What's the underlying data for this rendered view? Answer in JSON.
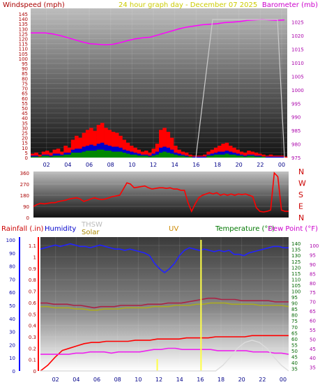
{
  "header": {
    "wind_label": "Windspeed (mph)",
    "title": "24 hour graph day - December 07 2025",
    "baro_label": "Barometer (mb)"
  },
  "chart_data": [
    {
      "name": "wind-baro-panel",
      "type": "bar",
      "x_ticks": [
        "02",
        "04",
        "06",
        "08",
        "10",
        "12",
        "14",
        "16",
        "18",
        "20",
        "22",
        "00"
      ],
      "left_axis": {
        "label": "Windspeed (mph)",
        "ticks": [
          0,
          5,
          10,
          15,
          20,
          25,
          30,
          35,
          40,
          45,
          50,
          55,
          60,
          65,
          70,
          75,
          80,
          85,
          90,
          95,
          100,
          105,
          110,
          115,
          120,
          125,
          130,
          135,
          140,
          145
        ],
        "ylim": [
          0,
          145
        ]
      },
      "right_axis": {
        "label": "Barometer (mb)",
        "ticks": [
          975,
          980,
          985,
          990,
          995,
          1000,
          1005,
          1010,
          1015,
          1020,
          1025
        ],
        "ylim": [
          975,
          1028
        ]
      },
      "series": [
        {
          "name": "gust",
          "color": "#ff0000",
          "values": [
            4,
            5,
            3,
            6,
            7,
            5,
            8,
            9,
            6,
            12,
            10,
            18,
            22,
            20,
            25,
            28,
            30,
            27,
            33,
            35,
            30,
            28,
            26,
            25,
            22,
            18,
            15,
            12,
            10,
            8,
            6,
            7,
            5,
            9,
            14,
            28,
            30,
            26,
            20,
            12,
            8,
            6,
            5,
            3,
            2,
            2,
            2,
            3,
            6,
            8,
            10,
            12,
            14,
            15,
            12,
            10,
            8,
            6,
            5,
            7,
            6,
            5,
            4,
            3,
            2,
            3,
            2,
            2,
            2,
            1
          ]
        },
        {
          "name": "average",
          "color": "#0000cc",
          "values": [
            2,
            2,
            1,
            3,
            3,
            2,
            4,
            4,
            3,
            5,
            5,
            8,
            9,
            9,
            11,
            12,
            13,
            12,
            14,
            15,
            13,
            12,
            11,
            11,
            10,
            8,
            7,
            6,
            5,
            4,
            3,
            3,
            2,
            4,
            6,
            10,
            11,
            10,
            8,
            5,
            4,
            3,
            2,
            1,
            1,
            1,
            1,
            1,
            3,
            4,
            5,
            6,
            6,
            7,
            6,
            5,
            4,
            3,
            2,
            3,
            3,
            2,
            2,
            1,
            1,
            1,
            1,
            1,
            1,
            0
          ]
        },
        {
          "name": "low",
          "color": "#008800",
          "values": [
            1,
            1,
            1,
            2,
            2,
            1,
            2,
            2,
            2,
            3,
            3,
            5,
            5,
            5,
            6,
            7,
            7,
            7,
            8,
            8,
            7,
            7,
            6,
            6,
            6,
            5,
            4,
            3,
            3,
            2,
            2,
            2,
            1,
            2,
            3,
            5,
            6,
            5,
            4,
            3,
            2,
            2,
            1,
            1,
            0,
            0,
            0,
            0,
            2,
            2,
            3,
            3,
            3,
            4,
            3,
            3,
            2,
            2,
            1,
            2,
            2,
            1,
            1,
            1,
            0,
            0,
            0,
            0,
            0,
            0
          ]
        },
        {
          "name": "barometer",
          "color": "#ff00ff",
          "values": [
            1021,
            1021,
            1021,
            1020.6,
            1020,
            1019.2,
            1018.4,
            1017.6,
            1017,
            1016.8,
            1016.6,
            1016.8,
            1017.4,
            1018.2,
            1018.8,
            1019.2,
            1019.4,
            1020.2,
            1021,
            1021.8,
            1022.6,
            1023.2,
            1023.6,
            1024,
            1024.2,
            1024.4,
            1024.8,
            1025,
            1025.2,
            1025.6,
            1025.8,
            1026,
            1025.8,
            1025.6,
            1025.8
          ]
        }
      ]
    },
    {
      "name": "direction-panel",
      "type": "line",
      "left_axis": {
        "ticks": [
          0,
          90,
          180,
          270,
          360
        ],
        "ylim": [
          0,
          360
        ]
      },
      "right_labels": [
        "N",
        "W",
        "S",
        "E",
        "N"
      ],
      "series": [
        {
          "name": "wind direction",
          "color": "#ff0000",
          "values": [
            90,
            105,
            115,
            110,
            115,
            120,
            120,
            130,
            135,
            140,
            150,
            155,
            160,
            150,
            130,
            140,
            150,
            160,
            150,
            145,
            150,
            160,
            170,
            175,
            180,
            230,
            280,
            270,
            240,
            245,
            250,
            255,
            240,
            230,
            235,
            240,
            240,
            235,
            240,
            230,
            230,
            220,
            220,
            120,
            50,
            110,
            160,
            180,
            190,
            200,
            190,
            200,
            180,
            190,
            180,
            190,
            180,
            190,
            185,
            190,
            180,
            170,
            80,
            50,
            45,
            50,
            60,
            360,
            330,
            60,
            50,
            50
          ]
        }
      ]
    },
    {
      "name": "weather-panel",
      "type": "line",
      "labels": {
        "rain": "Rainfall (.in)",
        "humidity": "Humidity",
        "thsw": "THSW",
        "solar": "Solar",
        "uv": "UV",
        "temp": "Temperature (°F)",
        "dew": "Dew Point (°F)"
      },
      "x_ticks": [
        "02",
        "04",
        "06",
        "08",
        "10",
        "12",
        "14",
        "16",
        "18",
        "20",
        "22",
        "00"
      ],
      "humidity_axis": {
        "ticks": [
          0,
          10,
          20,
          30,
          40,
          50,
          60,
          70,
          80,
          90,
          100
        ],
        "ylim": [
          0,
          100
        ]
      },
      "rain_axis": {
        "ticks": [
          0,
          0.1,
          0.2,
          0.3,
          0.4,
          0.5,
          0.6,
          0.7,
          0.8,
          0.9,
          1,
          1.1
        ],
        "ylim": [
          0,
          1.15
        ]
      },
      "temp_axis": {
        "ticks": [
          35,
          40,
          45,
          50,
          55,
          60,
          65,
          70,
          75,
          80,
          85,
          90,
          95,
          100,
          105,
          110,
          115,
          120,
          125,
          130,
          135,
          140
        ],
        "ylim": [
          33,
          143
        ]
      },
      "dew_axis": {
        "ticks": [
          35,
          40,
          45,
          50,
          55,
          60,
          65,
          70,
          75,
          80,
          85,
          90,
          95,
          100
        ],
        "ylim": [
          33,
          103
        ]
      },
      "series": [
        {
          "name": "humidity",
          "color": "#2222ff",
          "values": [
            93,
            94,
            95,
            96,
            95,
            96,
            97,
            96,
            95,
            95,
            94,
            95,
            96,
            95,
            94,
            93,
            93,
            92,
            93,
            92,
            91,
            90,
            88,
            82,
            78,
            75,
            78,
            82,
            88,
            92,
            94,
            93,
            92,
            93,
            92,
            91,
            92,
            91,
            92,
            89,
            89,
            88,
            90,
            91,
            92,
            93,
            94,
            95,
            95,
            94,
            94
          ]
        },
        {
          "name": "rainfall",
          "color": "#ff0000",
          "values": [
            0,
            0.05,
            0.12,
            0.18,
            0.2,
            0.22,
            0.24,
            0.25,
            0.25,
            0.26,
            0.26,
            0.26,
            0.26,
            0.27,
            0.27,
            0.27,
            0.28,
            0.28,
            0.28,
            0.28,
            0.29,
            0.29,
            0.29,
            0.29,
            0.3,
            0.3,
            0.3,
            0.3,
            0.3,
            0.31,
            0.31,
            0.31,
            0.31,
            0.31,
            0.31
          ]
        },
        {
          "name": "temperature",
          "color": "#aa2244",
          "values": [
            90,
            90,
            89,
            89,
            89,
            88,
            88,
            87,
            86,
            87,
            87,
            87,
            88,
            88,
            88,
            88,
            89,
            89,
            89,
            90,
            90,
            90,
            91,
            92,
            93,
            94,
            94,
            93,
            93,
            93,
            92,
            92,
            92,
            92,
            92,
            91,
            91,
            91
          ]
        },
        {
          "name": "dew point",
          "color": "#ee22ee",
          "values": [
            47,
            47,
            47,
            47,
            47,
            48,
            48,
            49,
            49,
            49,
            48,
            49,
            49,
            49,
            49,
            50,
            51,
            51,
            52,
            52,
            51,
            51,
            51,
            51,
            51,
            50,
            50,
            50,
            50,
            50,
            49,
            49,
            49,
            48,
            48,
            47
          ]
        },
        {
          "name": "thsw",
          "color": "#aaaa22",
          "values": [
            87,
            87,
            86,
            86,
            86,
            85,
            85,
            84,
            84,
            85,
            85,
            85,
            86,
            86,
            86,
            86,
            87,
            87,
            87,
            88,
            88,
            88,
            89,
            89,
            90,
            90,
            90,
            89,
            89,
            89,
            89,
            88,
            88,
            88,
            88,
            87
          ]
        },
        {
          "name": "uv",
          "color": "#ffff44",
          "values": [
            0,
            0,
            0,
            0,
            0,
            0,
            0,
            0,
            0,
            0,
            0,
            0,
            0,
            0,
            0,
            0,
            1,
            0,
            0,
            0,
            0,
            0,
            11,
            0,
            0,
            0,
            0,
            0,
            0,
            0,
            0,
            0,
            0,
            0,
            0
          ]
        },
        {
          "name": "solar",
          "color": "#ffffff",
          "values": [
            0,
            0,
            0,
            0,
            0,
            0,
            0,
            0,
            0,
            0,
            0,
            0,
            0,
            0,
            0,
            0,
            0,
            0,
            0,
            0,
            0,
            0,
            0,
            0,
            0,
            0.05,
            0.12,
            0.2,
            0.25,
            0.27,
            0.25,
            0.2,
            0.12,
            0.05,
            0
          ]
        }
      ]
    }
  ]
}
